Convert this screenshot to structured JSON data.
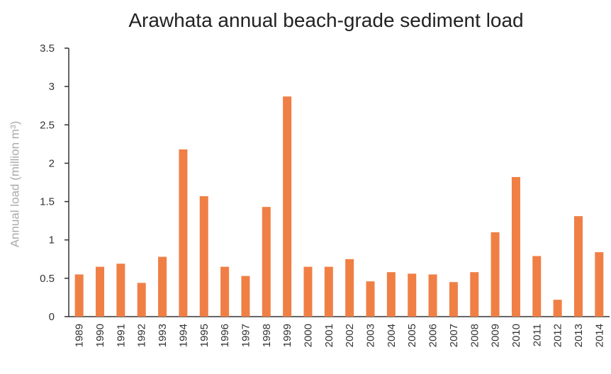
{
  "chart_data": {
    "type": "bar",
    "title": "Arawhata annual beach-grade sediment load",
    "y_label": "Annual load (million m³)",
    "categories": [
      "1989",
      "1990",
      "1991",
      "1992",
      "1993",
      "1994",
      "1995",
      "1996",
      "1997",
      "1998",
      "1999",
      "2000",
      "2001",
      "2002",
      "2003",
      "2004",
      "2005",
      "2006",
      "2007",
      "2008",
      "2009",
      "2010",
      "2011",
      "2012",
      "2013",
      "2014"
    ],
    "values": [
      0.55,
      0.65,
      0.69,
      0.44,
      0.78,
      2.18,
      1.57,
      0.65,
      0.53,
      1.43,
      2.87,
      0.65,
      0.65,
      0.75,
      0.46,
      0.58,
      0.56,
      0.55,
      0.45,
      0.58,
      1.1,
      1.82,
      0.79,
      0.22,
      1.31,
      0.84
    ],
    "color": "#f07f45",
    "ylim": [
      0,
      3.5
    ],
    "yticks": [
      0,
      0.5,
      1,
      1.5,
      2,
      2.5,
      3,
      3.5
    ],
    "grid": false
  }
}
